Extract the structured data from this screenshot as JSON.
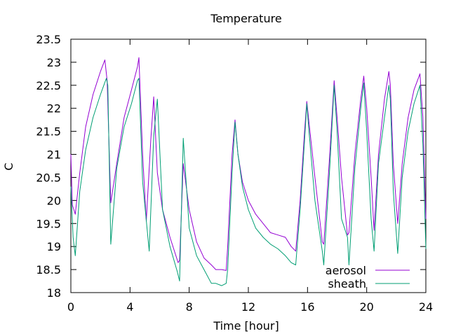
{
  "chart_data": {
    "type": "line",
    "title": "Temperature",
    "xlabel": "Time [hour]",
    "ylabel": "C",
    "xlim": [
      0,
      24
    ],
    "ylim": [
      18,
      23.5
    ],
    "xticks": [
      0,
      4,
      8,
      12,
      16,
      20,
      24
    ],
    "yticks": [
      18,
      18.5,
      19,
      19.5,
      20,
      20.5,
      21,
      21.5,
      22,
      22.5,
      23,
      23.5
    ],
    "grid": false,
    "legend": "bottom-right",
    "series": [
      {
        "name": "aerosol",
        "color": "#9400d3",
        "x": [
          0,
          0.1,
          0.3,
          0.6,
          1.0,
          1.5,
          2.0,
          2.3,
          2.45,
          2.7,
          3.1,
          3.6,
          4.1,
          4.5,
          4.6,
          4.85,
          5.1,
          5.4,
          5.6,
          5.85,
          6.2,
          6.7,
          7.25,
          7.35,
          7.6,
          8.0,
          8.5,
          9.0,
          9.5,
          9.8,
          10.2,
          10.5,
          10.6,
          10.9,
          11.1,
          11.3,
          11.6,
          12.0,
          12.5,
          13.0,
          13.5,
          14.0,
          14.5,
          14.9,
          15.2,
          15.5,
          15.8,
          15.95,
          16.1,
          16.5,
          17.0,
          17.1,
          17.5,
          17.8,
          18.0,
          18.3,
          18.7,
          18.8,
          19.2,
          19.6,
          19.8,
          20.0,
          20.3,
          20.5,
          20.8,
          21.2,
          21.5,
          21.6,
          21.8,
          22.1,
          22.4,
          22.8,
          23.2,
          23.6,
          23.8,
          24.0
        ],
        "values": [
          21.0,
          19.9,
          19.7,
          20.6,
          21.6,
          22.3,
          22.8,
          23.05,
          22.6,
          19.95,
          20.8,
          21.8,
          22.4,
          22.9,
          23.1,
          21.0,
          19.55,
          21.3,
          22.25,
          20.6,
          19.8,
          19.2,
          18.65,
          18.7,
          20.8,
          19.8,
          19.1,
          18.75,
          18.6,
          18.5,
          18.5,
          18.48,
          19.0,
          21.0,
          21.75,
          21.0,
          20.4,
          20.0,
          19.7,
          19.5,
          19.3,
          19.25,
          19.2,
          19.0,
          18.9,
          20.0,
          21.5,
          22.15,
          21.7,
          20.5,
          19.1,
          19.05,
          21.0,
          22.6,
          21.8,
          20.5,
          19.25,
          19.3,
          21.0,
          22.2,
          22.7,
          22.0,
          20.5,
          19.35,
          21.0,
          22.2,
          22.8,
          22.5,
          20.8,
          19.5,
          20.8,
          21.8,
          22.4,
          22.75,
          21.8,
          19.6
        ]
      },
      {
        "name": "sheath",
        "color": "#009e73",
        "x": [
          0,
          0.15,
          0.3,
          0.6,
          1.0,
          1.5,
          2.0,
          2.4,
          2.5,
          2.7,
          3.1,
          3.6,
          4.1,
          4.5,
          4.6,
          4.85,
          5.3,
          5.6,
          5.85,
          6.2,
          6.7,
          7.2,
          7.35,
          7.6,
          8.0,
          8.5,
          9.0,
          9.5,
          9.8,
          10.2,
          10.5,
          10.6,
          10.9,
          11.1,
          11.3,
          11.6,
          12.0,
          12.5,
          13.0,
          13.5,
          14.0,
          14.5,
          14.9,
          15.2,
          15.5,
          15.8,
          15.95,
          16.1,
          16.5,
          17.0,
          17.1,
          17.5,
          17.8,
          18.0,
          18.3,
          18.7,
          18.8,
          19.2,
          19.6,
          19.8,
          20.0,
          20.3,
          20.5,
          20.8,
          21.2,
          21.5,
          21.6,
          21.8,
          22.1,
          22.4,
          22.8,
          23.2,
          23.6,
          23.8,
          24.0
        ],
        "values": [
          20.3,
          19.2,
          18.8,
          20.2,
          21.1,
          21.8,
          22.3,
          22.65,
          22.5,
          19.05,
          20.7,
          21.6,
          22.1,
          22.6,
          22.65,
          20.4,
          18.9,
          21.4,
          22.2,
          19.8,
          19.0,
          18.45,
          18.25,
          21.35,
          19.4,
          18.8,
          18.5,
          18.2,
          18.2,
          18.15,
          18.2,
          18.5,
          20.6,
          21.7,
          21.0,
          20.3,
          19.8,
          19.4,
          19.2,
          19.05,
          18.95,
          18.8,
          18.65,
          18.6,
          19.8,
          21.3,
          22.1,
          21.5,
          20.0,
          18.9,
          18.6,
          20.7,
          22.5,
          21.5,
          19.6,
          19.2,
          18.6,
          20.7,
          22.0,
          22.55,
          21.5,
          19.6,
          18.9,
          20.8,
          21.8,
          22.5,
          22.2,
          20.2,
          18.85,
          20.5,
          21.5,
          22.1,
          22.5,
          21.2,
          18.95
        ]
      }
    ]
  }
}
